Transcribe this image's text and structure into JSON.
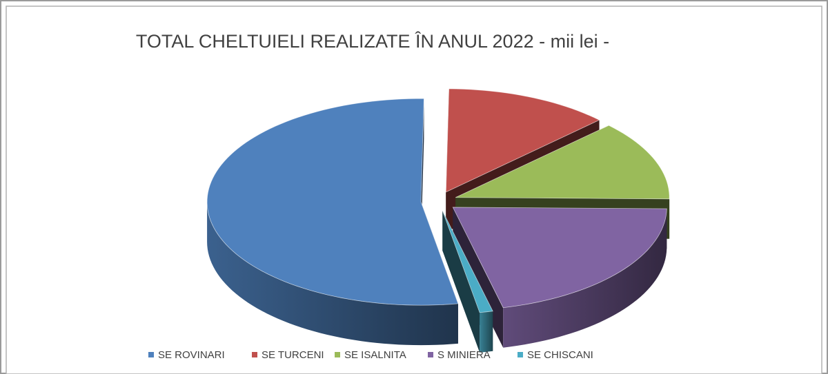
{
  "chart_data": {
    "type": "pie3d",
    "title": "TOTAL CHELTUIELI REALIZATE ÎN  ANUL 2022 - mii lei -",
    "categories": [
      "SE ROVINARI",
      "SE TURCENI",
      "SE ISALNITA",
      "S MINIERA",
      "SE CHISCANI"
    ],
    "values": [
      53,
      12.5,
      12.5,
      21,
      1
    ],
    "colors": [
      "#4f81bd",
      "#c0504d",
      "#9bbb59",
      "#8064a2",
      "#4bacc6"
    ],
    "legend": "bottom"
  }
}
